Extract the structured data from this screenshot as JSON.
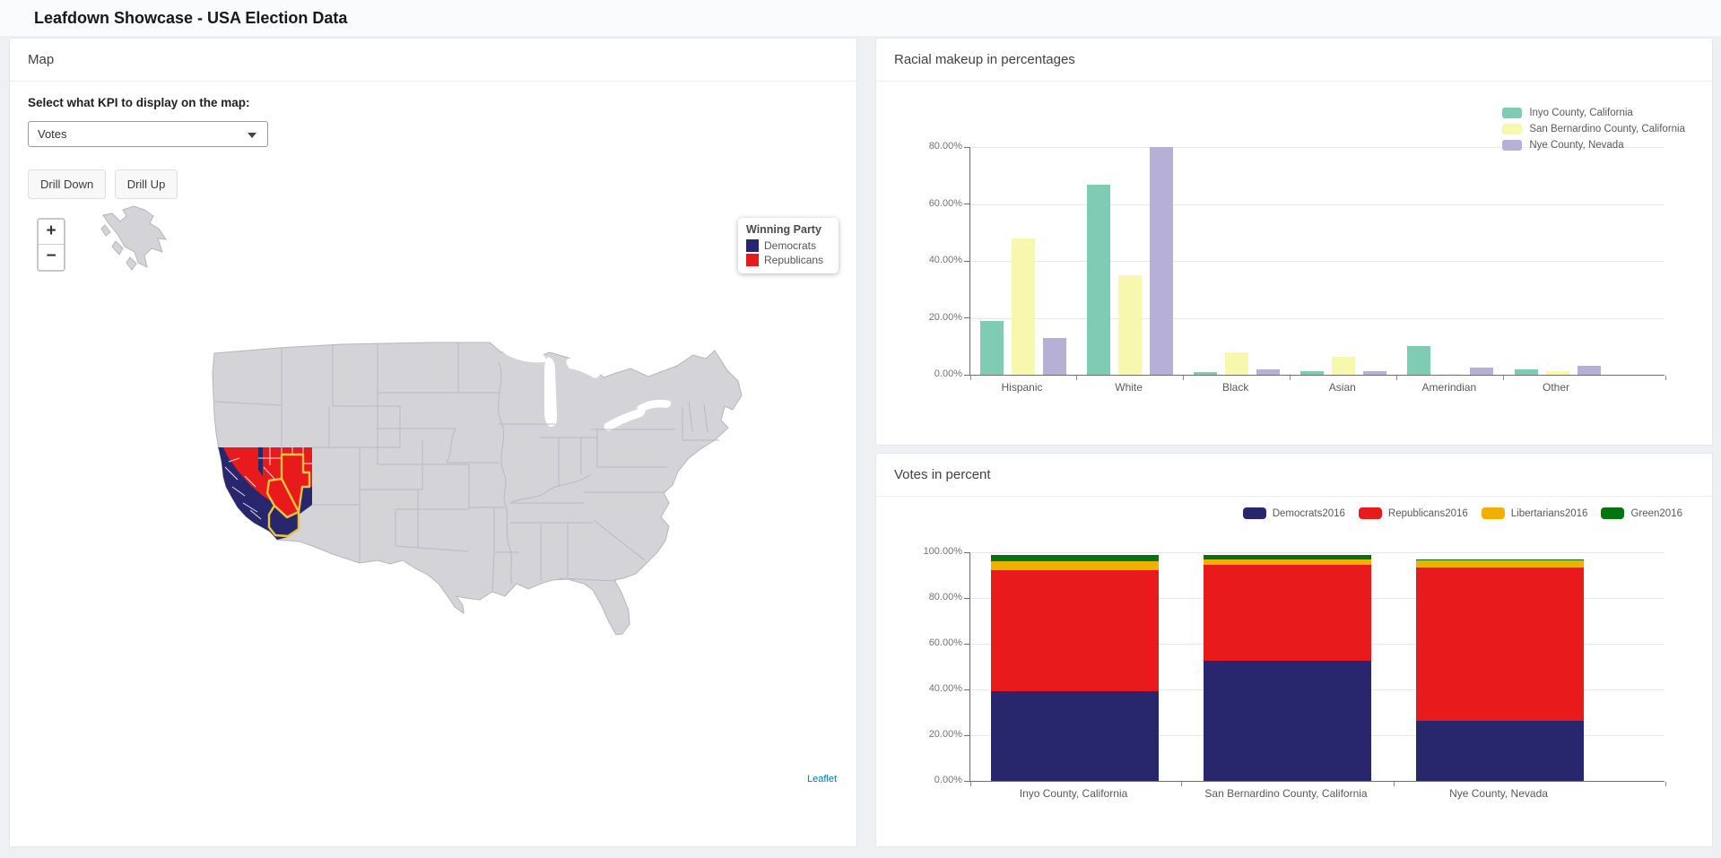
{
  "app": {
    "title": "Leafdown Showcase - USA Election Data"
  },
  "colors": {
    "democrat": "#28276e",
    "republican": "#e81a1c",
    "county_highlight": "#e9c63e",
    "map_land": "#d3d3d8"
  },
  "map_panel": {
    "title": "Map",
    "kpi_label": "Select what KPI to display on the map:",
    "kpi_value": "Votes",
    "drill_down": "Drill Down",
    "drill_up": "Drill Up",
    "zoom_in": "+",
    "zoom_out": "−",
    "winning_party_legend": {
      "title": "Winning Party",
      "items": [
        {
          "label": "Democrats",
          "color": "#28276e"
        },
        {
          "label": "Republicans",
          "color": "#e81a1c"
        }
      ]
    },
    "attribution": "Leaflet"
  },
  "racial_panel": {
    "title": "Racial makeup in percentages"
  },
  "votes_panel": {
    "title": "Votes in percent"
  },
  "chart_data": [
    {
      "type": "bar",
      "title": "Racial makeup in percentages",
      "categories": [
        "Hispanic",
        "White",
        "Black",
        "Asian",
        "Amerindian",
        "Other"
      ],
      "series": [
        {
          "name": "Inyo County, California",
          "color": "#7fcbb3",
          "values": [
            19.0,
            66.9,
            0.9,
            1.4,
            10.0,
            1.9
          ]
        },
        {
          "name": "San Bernardino County, California",
          "color": "#f7f7ae",
          "values": [
            48.0,
            35.0,
            8.0,
            6.3,
            0.4,
            1.3
          ]
        },
        {
          "name": "Nye County, Nevada",
          "color": "#b6afd6",
          "values": [
            13.0,
            80.0,
            2.0,
            1.2,
            2.4,
            3.0
          ]
        }
      ],
      "ylabel_format": "percent",
      "ylim": [
        0,
        80
      ],
      "ytick_step": 20,
      "grid": true,
      "legend_position": "top-right"
    },
    {
      "type": "stacked-bar",
      "title": "Votes in percent",
      "categories": [
        "Inyo County, California",
        "San Bernardino County, California",
        "Nye County, Nevada"
      ],
      "series": [
        {
          "name": "Democrats2016",
          "color": "#28276e",
          "values": [
            39.3,
            52.4,
            26.1
          ]
        },
        {
          "name": "Republicans2016",
          "color": "#e81a1c",
          "values": [
            53.0,
            42.2,
            67.1
          ]
        },
        {
          "name": "Libertarians2016",
          "color": "#efb100",
          "values": [
            3.8,
            2.4,
            3.2
          ]
        },
        {
          "name": "Green2016",
          "color": "#067311",
          "values": [
            2.9,
            1.9,
            0.4
          ]
        }
      ],
      "ylabel_format": "percent",
      "ylim": [
        0,
        100
      ],
      "ytick_step": 20,
      "grid": true,
      "legend_position": "top-right"
    }
  ]
}
